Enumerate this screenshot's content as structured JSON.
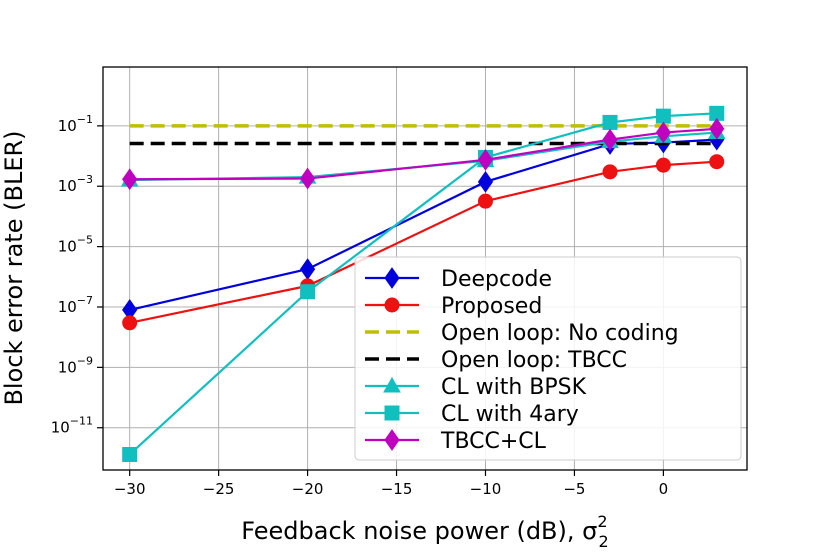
{
  "chart_data": {
    "type": "line",
    "title": "",
    "xlabel": "Feedback noise power (dB), σ",
    "xlabel_sup": "2",
    "xlabel_sub": "2",
    "ylabel": "Block error rate (BLER)",
    "xlim": [
      -31.5,
      4.7
    ],
    "ylim_log10": [
      -12.4,
      0.95
    ],
    "yscale": "log",
    "grid": true,
    "legend_position": "lower-right",
    "x_ticks": [
      -30,
      -25,
      -20,
      -15,
      -10,
      -5,
      0
    ],
    "x_tick_labels": [
      "−30",
      "−25",
      "−20",
      "−15",
      "−10",
      "−5",
      "0"
    ],
    "y_ticks": [
      {
        "exp": -1,
        "base": "10",
        "power": "−1"
      },
      {
        "exp": -3,
        "base": "10",
        "power": "−3"
      },
      {
        "exp": -5,
        "base": "10",
        "power": "−5"
      },
      {
        "exp": -7,
        "base": "10",
        "power": "−7"
      },
      {
        "exp": -9,
        "base": "10",
        "power": "−9"
      },
      {
        "exp": -11,
        "base": "10",
        "power": "−11"
      }
    ],
    "series": [
      {
        "name": "Deepcode",
        "color": "#0000dd",
        "marker": "diamond",
        "dashed": false,
        "x": [
          -30,
          -20,
          -10,
          -3,
          0,
          3
        ],
        "y": [
          8e-08,
          1.8e-06,
          0.0014,
          0.025,
          0.028,
          0.035
        ]
      },
      {
        "name": "Proposed",
        "color": "#ee1111",
        "marker": "circle",
        "dashed": false,
        "x": [
          -30,
          -20,
          -10,
          -3,
          0,
          3
        ],
        "y": [
          3e-08,
          5e-07,
          0.00032,
          0.003,
          0.005,
          0.0065
        ]
      },
      {
        "name": "Open loop: No coding",
        "color": "#bfbf00",
        "marker": "none",
        "dashed": true,
        "x": [
          -30,
          3
        ],
        "y": [
          0.1,
          0.1
        ]
      },
      {
        "name": "Open loop: TBCC",
        "color": "#000000",
        "marker": "none",
        "dashed": true,
        "x": [
          -30,
          3
        ],
        "y": [
          0.026,
          0.026
        ]
      },
      {
        "name": "CL with BPSK",
        "color": "#11bfbf",
        "marker": "triangle",
        "dashed": false,
        "x": [
          -30,
          -20,
          -10,
          -3,
          0,
          3
        ],
        "y": [
          0.0016,
          0.002,
          0.007,
          0.03,
          0.045,
          0.06
        ]
      },
      {
        "name": "CL with 4ary",
        "color": "#11bfbf",
        "marker": "square",
        "dashed": false,
        "x": [
          -30,
          -20,
          -10,
          -3,
          0,
          3
        ],
        "y": [
          1.3e-12,
          3.2e-07,
          0.009,
          0.13,
          0.21,
          0.26
        ]
      },
      {
        "name": "TBCC+CL",
        "color": "#bf00bf",
        "marker": "diamond",
        "dashed": false,
        "x": [
          -30,
          -20,
          -10,
          -3,
          0,
          3
        ],
        "y": [
          0.0017,
          0.0018,
          0.0075,
          0.035,
          0.06,
          0.08
        ]
      }
    ]
  }
}
